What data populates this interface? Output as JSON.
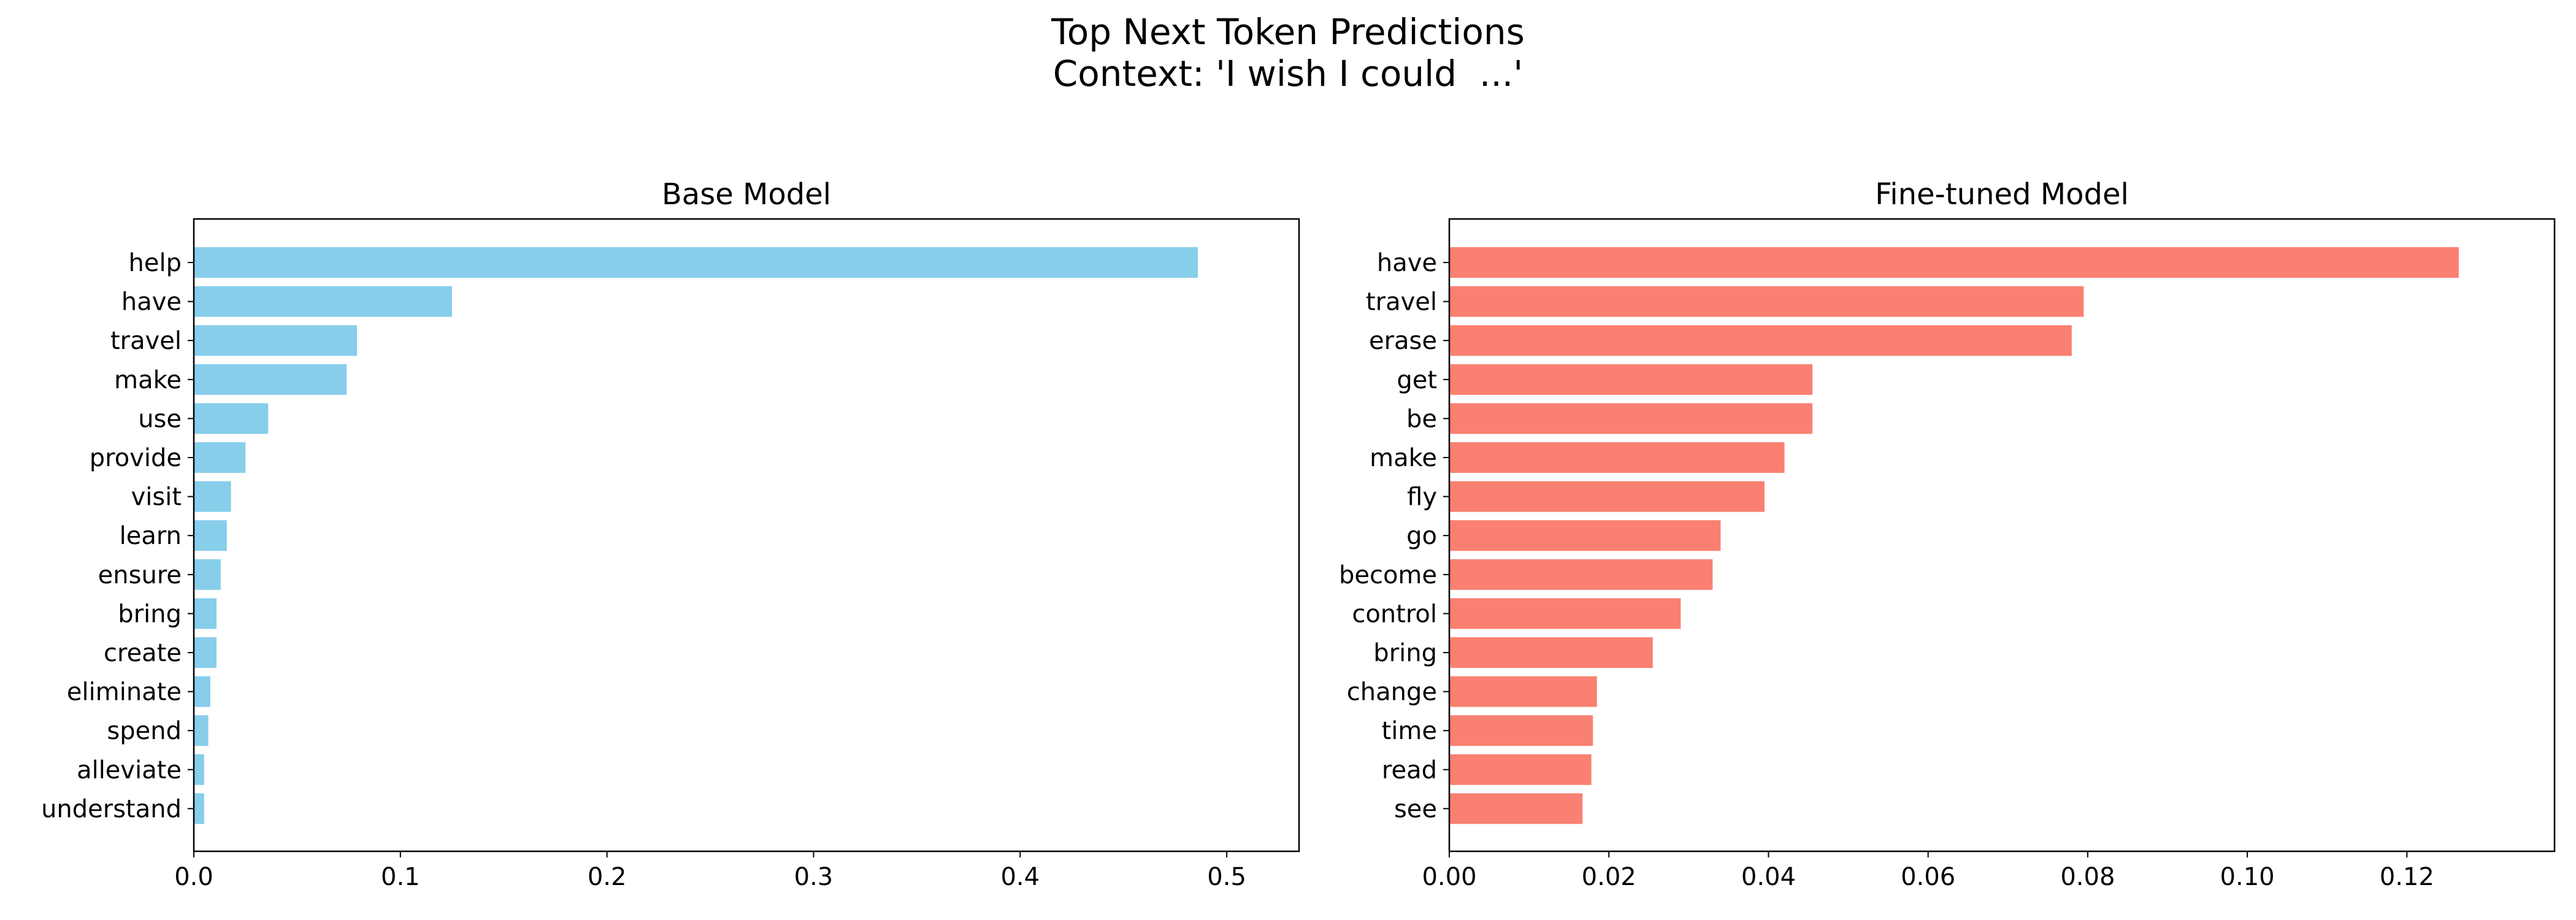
{
  "figure": {
    "title_line1": "Top Next Token Predictions",
    "title_line2": "Context: 'I wish I could  ...'"
  },
  "chart_data": [
    {
      "type": "bar",
      "orientation": "horizontal",
      "title": "Base Model",
      "color": "#87CEEB",
      "xlim": [
        0,
        0.535
      ],
      "xticks": [
        0.0,
        0.1,
        0.2,
        0.3,
        0.4,
        0.5
      ],
      "tick_labels": [
        "0.0",
        "0.1",
        "0.2",
        "0.3",
        "0.4",
        "0.5"
      ],
      "categories": [
        "help",
        "have",
        "travel",
        "make",
        "use",
        "provide",
        "visit",
        "learn",
        "ensure",
        "bring",
        "create",
        "eliminate",
        "spend",
        "alleviate",
        "understand"
      ],
      "values": [
        0.486,
        0.125,
        0.079,
        0.074,
        0.036,
        0.025,
        0.018,
        0.016,
        0.013,
        0.011,
        0.011,
        0.008,
        0.007,
        0.005,
        0.005
      ]
    },
    {
      "type": "bar",
      "orientation": "horizontal",
      "title": "Fine-tuned Model",
      "color": "#FA8072",
      "xlim": [
        0,
        0.1385
      ],
      "xticks": [
        0.0,
        0.02,
        0.04,
        0.06,
        0.08,
        0.1,
        0.12
      ],
      "tick_labels": [
        "0.00",
        "0.02",
        "0.04",
        "0.06",
        "0.08",
        "0.10",
        "0.12"
      ],
      "categories": [
        "have",
        "travel",
        "erase",
        "get",
        "be",
        "make",
        "fly",
        "go",
        "become",
        "control",
        "bring",
        "change",
        "time",
        "read",
        "see"
      ],
      "values": [
        0.1265,
        0.0795,
        0.078,
        0.0455,
        0.0455,
        0.042,
        0.0395,
        0.034,
        0.033,
        0.029,
        0.0255,
        0.0185,
        0.018,
        0.0178,
        0.0167
      ]
    }
  ]
}
